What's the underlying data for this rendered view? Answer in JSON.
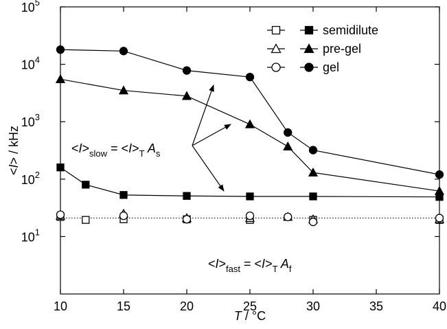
{
  "chart_data": {
    "type": "line",
    "x_label": "T / °C",
    "x_label_parts": [
      {
        "text": "T",
        "italic": true
      },
      {
        "text": " / °C"
      }
    ],
    "y_label_parts": [
      {
        "text": "<"
      },
      {
        "text": "I",
        "italic": true
      },
      {
        "text": "> / kHz"
      }
    ],
    "xlim": [
      10,
      40
    ],
    "xticks": [
      10,
      15,
      20,
      25,
      30,
      35,
      40
    ],
    "ylim": [
      1,
      100000
    ],
    "log_y": true,
    "yticks": [
      {
        "value": 10,
        "label": "10",
        "exponent": "1"
      },
      {
        "value": 100,
        "label": "10",
        "exponent": "2"
      },
      {
        "value": 1000,
        "label": "10",
        "exponent": "3"
      },
      {
        "value": 10000,
        "label": "10",
        "exponent": "4"
      },
      {
        "value": 100000,
        "label": "10",
        "exponent": "5"
      }
    ],
    "legend_position": "upper right",
    "series": [
      {
        "name": "semidilute",
        "marker": "square",
        "filled": true,
        "color": "#000000",
        "x": [
          10,
          12,
          15,
          20,
          25,
          30,
          40
        ],
        "values": [
          160,
          80,
          53,
          51,
          50,
          50,
          49
        ]
      },
      {
        "name": "pre-gel",
        "marker": "triangle",
        "filled": true,
        "color": "#000000",
        "x": [
          10,
          15,
          20,
          25,
          28,
          30,
          40
        ],
        "values": [
          5500,
          3500,
          2800,
          900,
          370,
          130,
          62
        ]
      },
      {
        "name": "gel",
        "marker": "circle",
        "filled": true,
        "color": "#000000",
        "x": [
          10,
          15,
          20,
          25,
          28,
          30,
          40
        ],
        "values": [
          18000,
          17000,
          7800,
          6000,
          650,
          320,
          120
        ]
      },
      {
        "marker": "square",
        "filled": false,
        "color": "#000000",
        "x": [
          10,
          12,
          15,
          20,
          25,
          30,
          40
        ],
        "values": [
          22,
          19.5,
          20,
          20,
          19.5,
          19.5,
          19.5
        ]
      },
      {
        "marker": "triangle",
        "filled": false,
        "color": "#000000",
        "x": [
          10,
          15,
          20,
          25,
          28,
          30,
          40
        ],
        "values": [
          23,
          25,
          21,
          21,
          22,
          20,
          20
        ]
      },
      {
        "marker": "circle",
        "filled": false,
        "color": "#000000",
        "x": [
          10,
          15,
          20,
          25,
          28,
          30,
          40
        ],
        "values": [
          24,
          23,
          20,
          23,
          22,
          18,
          21
        ]
      }
    ],
    "reference_line": 21,
    "annotations": [
      {
        "parts": [
          {
            "text": "<"
          },
          {
            "text": "I",
            "italic": true
          },
          {
            "text": ">"
          },
          {
            "text": "slow",
            "sub": true
          },
          {
            "text": " = <"
          },
          {
            "text": "I",
            "italic": true
          },
          {
            "text": ">"
          },
          {
            "text": "T",
            "sub": true
          },
          {
            "text": " A",
            "italic": true
          },
          {
            "text": "s",
            "sub": true
          }
        ]
      },
      {
        "parts": [
          {
            "text": "<"
          },
          {
            "text": "I",
            "italic": true
          },
          {
            "text": ">"
          },
          {
            "text": "fast",
            "sub": true
          },
          {
            "text": " = <"
          },
          {
            "text": "I",
            "italic": true
          },
          {
            "text": ">"
          },
          {
            "text": "T",
            "sub": true
          },
          {
            "text": " A",
            "italic": true
          },
          {
            "text": "f",
            "sub": true
          }
        ]
      }
    ]
  }
}
